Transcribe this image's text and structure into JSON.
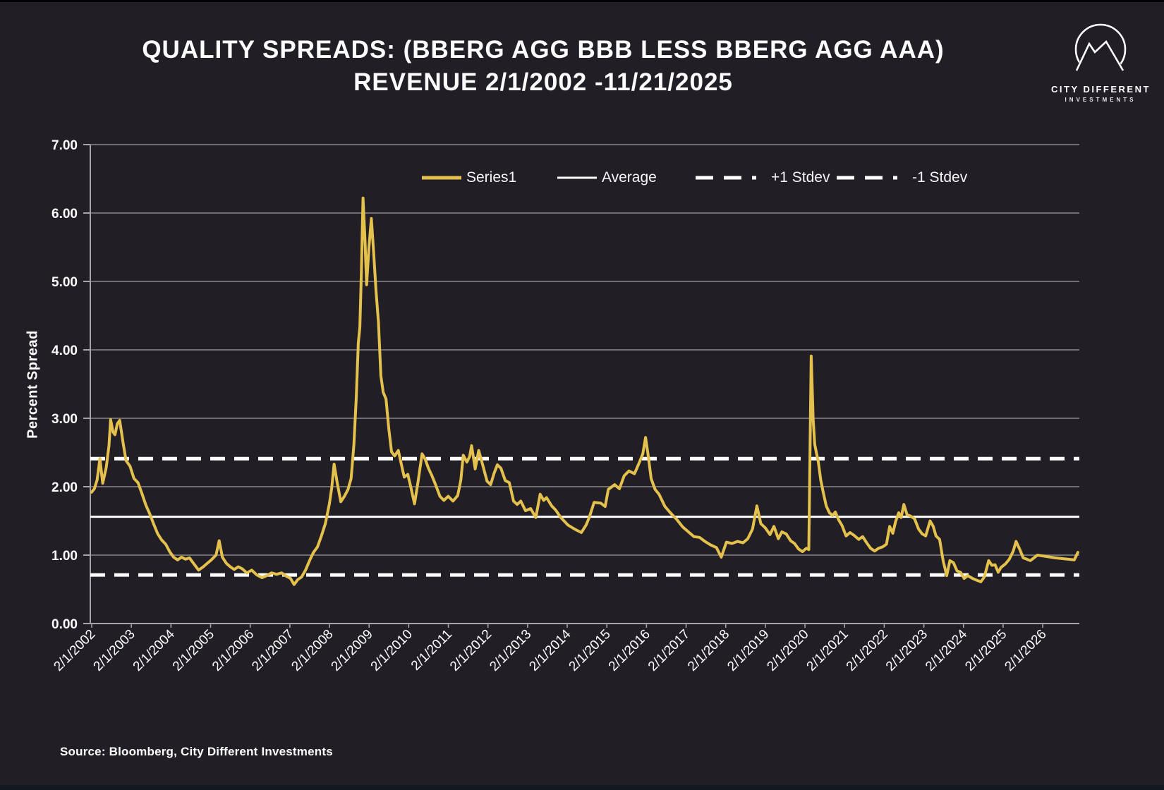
{
  "header": {
    "title_line1": "QUALITY SPREADS: (BBERG AGG BBB LESS BBERG AGG AAA)",
    "title_line2": "REVENUE 2/1/2002 -11/21/2025"
  },
  "logo": {
    "name": "CITY DIFFERENT",
    "sub": "INVESTMENTS"
  },
  "footer": {
    "source": "Source: Bloomberg, City Different Investments"
  },
  "colors": {
    "background": "#211F25",
    "series_yellow": "#E4C04C",
    "gridline": "#8A8A8A",
    "axis": "#A6A6A6",
    "reference_white": "#FFFFFF",
    "text": "#FFFFFF"
  },
  "chart_data": {
    "type": "line",
    "title": "QUALITY SPREADS: (BBERG AGG BBB LESS BBERG AGG AAA) REVENUE 2/1/2002 -11/21/2025",
    "xlabel": "",
    "ylabel": "Percent Spread",
    "ylim": [
      0,
      7
    ],
    "yticks": [
      0,
      1,
      2,
      3,
      4,
      5,
      6,
      7
    ],
    "ytick_labels": [
      "0.00",
      "1.00",
      "2.00",
      "3.00",
      "4.00",
      "5.00",
      "6.00",
      "7.00"
    ],
    "xtick_labels": [
      "2/1/2002",
      "2/1/2003",
      "2/1/2004",
      "2/1/2005",
      "2/1/2006",
      "2/1/2007",
      "2/1/2008",
      "2/1/2009",
      "2/1/2010",
      "2/1/2011",
      "2/1/2012",
      "2/1/2013",
      "2/1/2014",
      "2/1/2015",
      "2/1/2016",
      "2/1/2017",
      "2/1/2018",
      "2/1/2019",
      "2/1/2020",
      "2/1/2021",
      "2/1/2022",
      "2/1/2023",
      "2/1/2024",
      "2/1/2025",
      "2/1/2026"
    ],
    "grid": "horizontal",
    "legend_position": "top-inside",
    "legend": [
      {
        "label": "Series1",
        "style": "solid",
        "color": "#E4C04C"
      },
      {
        "label": "Average",
        "style": "solid",
        "color": "#FFFFFF"
      },
      {
        "label": "+1 Stdev",
        "style": "dashed",
        "color": "#FFFFFF"
      },
      {
        "label": "-1 Stdev",
        "style": "dashed",
        "color": "#FFFFFF"
      }
    ],
    "reference_lines": {
      "average": 1.56,
      "plus_1_stdev": 2.41,
      "minus_1_stdev": 0.71
    },
    "series": [
      {
        "name": "Series1",
        "color": "#E4C04C",
        "x_units": "decimal_year",
        "points": [
          [
            2002.08,
            1.92
          ],
          [
            2002.15,
            1.97
          ],
          [
            2002.22,
            2.1
          ],
          [
            2002.29,
            2.41
          ],
          [
            2002.36,
            2.05
          ],
          [
            2002.45,
            2.28
          ],
          [
            2002.52,
            2.6
          ],
          [
            2002.56,
            2.98
          ],
          [
            2002.62,
            2.8
          ],
          [
            2002.67,
            2.76
          ],
          [
            2002.73,
            2.92
          ],
          [
            2002.79,
            2.97
          ],
          [
            2002.88,
            2.62
          ],
          [
            2002.95,
            2.38
          ],
          [
            2003.05,
            2.3
          ],
          [
            2003.15,
            2.12
          ],
          [
            2003.25,
            2.06
          ],
          [
            2003.35,
            1.9
          ],
          [
            2003.45,
            1.73
          ],
          [
            2003.55,
            1.6
          ],
          [
            2003.65,
            1.45
          ],
          [
            2003.75,
            1.31
          ],
          [
            2003.85,
            1.22
          ],
          [
            2003.95,
            1.16
          ],
          [
            2004.05,
            1.05
          ],
          [
            2004.15,
            0.97
          ],
          [
            2004.25,
            0.93
          ],
          [
            2004.35,
            0.97
          ],
          [
            2004.45,
            0.94
          ],
          [
            2004.55,
            0.96
          ],
          [
            2004.65,
            0.88
          ],
          [
            2004.78,
            0.78
          ],
          [
            2004.9,
            0.83
          ],
          [
            2005.0,
            0.88
          ],
          [
            2005.1,
            0.93
          ],
          [
            2005.22,
            1.0
          ],
          [
            2005.3,
            1.21
          ],
          [
            2005.38,
            0.97
          ],
          [
            2005.48,
            0.88
          ],
          [
            2005.58,
            0.83
          ],
          [
            2005.68,
            0.79
          ],
          [
            2005.78,
            0.83
          ],
          [
            2005.88,
            0.8
          ],
          [
            2006.0,
            0.74
          ],
          [
            2006.12,
            0.78
          ],
          [
            2006.25,
            0.71
          ],
          [
            2006.38,
            0.67
          ],
          [
            2006.5,
            0.7
          ],
          [
            2006.62,
            0.74
          ],
          [
            2006.75,
            0.72
          ],
          [
            2006.88,
            0.74
          ],
          [
            2007.0,
            0.69
          ],
          [
            2007.1,
            0.66
          ],
          [
            2007.19,
            0.57
          ],
          [
            2007.28,
            0.64
          ],
          [
            2007.38,
            0.68
          ],
          [
            2007.48,
            0.78
          ],
          [
            2007.58,
            0.92
          ],
          [
            2007.68,
            1.04
          ],
          [
            2007.78,
            1.12
          ],
          [
            2007.88,
            1.28
          ],
          [
            2007.98,
            1.46
          ],
          [
            2008.08,
            1.75
          ],
          [
            2008.14,
            1.98
          ],
          [
            2008.2,
            2.33
          ],
          [
            2008.28,
            2.05
          ],
          [
            2008.37,
            1.78
          ],
          [
            2008.46,
            1.86
          ],
          [
            2008.55,
            1.96
          ],
          [
            2008.63,
            2.12
          ],
          [
            2008.7,
            2.62
          ],
          [
            2008.76,
            3.3
          ],
          [
            2008.81,
            4.1
          ],
          [
            2008.85,
            4.33
          ],
          [
            2008.89,
            5.15
          ],
          [
            2008.93,
            6.22
          ],
          [
            2008.98,
            5.6
          ],
          [
            2009.02,
            4.95
          ],
          [
            2009.08,
            5.5
          ],
          [
            2009.14,
            5.92
          ],
          [
            2009.2,
            5.4
          ],
          [
            2009.26,
            4.85
          ],
          [
            2009.32,
            4.4
          ],
          [
            2009.38,
            3.62
          ],
          [
            2009.44,
            3.38
          ],
          [
            2009.51,
            3.28
          ],
          [
            2009.58,
            2.85
          ],
          [
            2009.65,
            2.51
          ],
          [
            2009.73,
            2.45
          ],
          [
            2009.82,
            2.53
          ],
          [
            2009.9,
            2.32
          ],
          [
            2009.97,
            2.14
          ],
          [
            2010.06,
            2.18
          ],
          [
            2010.15,
            1.96
          ],
          [
            2010.23,
            1.75
          ],
          [
            2010.32,
            2.08
          ],
          [
            2010.42,
            2.48
          ],
          [
            2010.5,
            2.4
          ],
          [
            2010.58,
            2.27
          ],
          [
            2010.67,
            2.16
          ],
          [
            2010.76,
            2.03
          ],
          [
            2010.87,
            1.86
          ],
          [
            2010.97,
            1.8
          ],
          [
            2011.08,
            1.86
          ],
          [
            2011.2,
            1.79
          ],
          [
            2011.32,
            1.87
          ],
          [
            2011.4,
            2.1
          ],
          [
            2011.46,
            2.46
          ],
          [
            2011.55,
            2.36
          ],
          [
            2011.62,
            2.44
          ],
          [
            2011.67,
            2.6
          ],
          [
            2011.76,
            2.26
          ],
          [
            2011.85,
            2.53
          ],
          [
            2011.95,
            2.32
          ],
          [
            2012.06,
            2.08
          ],
          [
            2012.15,
            2.03
          ],
          [
            2012.24,
            2.2
          ],
          [
            2012.32,
            2.32
          ],
          [
            2012.41,
            2.27
          ],
          [
            2012.52,
            2.09
          ],
          [
            2012.62,
            2.06
          ],
          [
            2012.73,
            1.79
          ],
          [
            2012.82,
            1.74
          ],
          [
            2012.91,
            1.79
          ],
          [
            2013.03,
            1.65
          ],
          [
            2013.16,
            1.68
          ],
          [
            2013.29,
            1.55
          ],
          [
            2013.4,
            1.89
          ],
          [
            2013.49,
            1.8
          ],
          [
            2013.56,
            1.84
          ],
          [
            2013.69,
            1.72
          ],
          [
            2013.79,
            1.66
          ],
          [
            2013.92,
            1.55
          ],
          [
            2014.1,
            1.44
          ],
          [
            2014.27,
            1.38
          ],
          [
            2014.44,
            1.33
          ],
          [
            2014.56,
            1.44
          ],
          [
            2014.64,
            1.55
          ],
          [
            2014.76,
            1.77
          ],
          [
            2014.93,
            1.76
          ],
          [
            2015.04,
            1.71
          ],
          [
            2015.12,
            1.96
          ],
          [
            2015.28,
            2.03
          ],
          [
            2015.4,
            1.97
          ],
          [
            2015.52,
            2.16
          ],
          [
            2015.64,
            2.23
          ],
          [
            2015.78,
            2.19
          ],
          [
            2015.9,
            2.35
          ],
          [
            2015.99,
            2.48
          ],
          [
            2016.06,
            2.72
          ],
          [
            2016.12,
            2.48
          ],
          [
            2016.2,
            2.12
          ],
          [
            2016.3,
            1.96
          ],
          [
            2016.4,
            1.89
          ],
          [
            2016.55,
            1.71
          ],
          [
            2016.7,
            1.61
          ],
          [
            2016.85,
            1.52
          ],
          [
            2017.0,
            1.41
          ],
          [
            2017.14,
            1.34
          ],
          [
            2017.28,
            1.27
          ],
          [
            2017.42,
            1.26
          ],
          [
            2017.56,
            1.2
          ],
          [
            2017.7,
            1.15
          ],
          [
            2017.85,
            1.11
          ],
          [
            2017.97,
            0.97
          ],
          [
            2018.1,
            1.19
          ],
          [
            2018.24,
            1.17
          ],
          [
            2018.38,
            1.2
          ],
          [
            2018.52,
            1.18
          ],
          [
            2018.64,
            1.24
          ],
          [
            2018.76,
            1.38
          ],
          [
            2018.87,
            1.72
          ],
          [
            2018.97,
            1.46
          ],
          [
            2019.08,
            1.4
          ],
          [
            2019.2,
            1.3
          ],
          [
            2019.3,
            1.42
          ],
          [
            2019.41,
            1.24
          ],
          [
            2019.5,
            1.34
          ],
          [
            2019.61,
            1.31
          ],
          [
            2019.72,
            1.21
          ],
          [
            2019.82,
            1.17
          ],
          [
            2019.92,
            1.09
          ],
          [
            2020.02,
            1.05
          ],
          [
            2020.12,
            1.1
          ],
          [
            2020.18,
            1.08
          ],
          [
            2020.24,
            3.91
          ],
          [
            2020.29,
            2.98
          ],
          [
            2020.33,
            2.62
          ],
          [
            2020.37,
            2.5
          ],
          [
            2020.42,
            2.36
          ],
          [
            2020.48,
            2.1
          ],
          [
            2020.55,
            1.9
          ],
          [
            2020.62,
            1.72
          ],
          [
            2020.7,
            1.62
          ],
          [
            2020.78,
            1.58
          ],
          [
            2020.85,
            1.63
          ],
          [
            2020.93,
            1.52
          ],
          [
            2021.02,
            1.43
          ],
          [
            2021.12,
            1.28
          ],
          [
            2021.22,
            1.33
          ],
          [
            2021.32,
            1.29
          ],
          [
            2021.44,
            1.23
          ],
          [
            2021.54,
            1.27
          ],
          [
            2021.64,
            1.18
          ],
          [
            2021.74,
            1.1
          ],
          [
            2021.84,
            1.06
          ],
          [
            2021.94,
            1.1
          ],
          [
            2022.04,
            1.12
          ],
          [
            2022.14,
            1.16
          ],
          [
            2022.22,
            1.42
          ],
          [
            2022.3,
            1.32
          ],
          [
            2022.37,
            1.49
          ],
          [
            2022.45,
            1.62
          ],
          [
            2022.51,
            1.55
          ],
          [
            2022.58,
            1.74
          ],
          [
            2022.66,
            1.59
          ],
          [
            2022.75,
            1.57
          ],
          [
            2022.85,
            1.53
          ],
          [
            2022.95,
            1.38
          ],
          [
            2023.04,
            1.31
          ],
          [
            2023.13,
            1.28
          ],
          [
            2023.24,
            1.5
          ],
          [
            2023.32,
            1.42
          ],
          [
            2023.39,
            1.28
          ],
          [
            2023.48,
            1.23
          ],
          [
            2023.57,
            0.92
          ],
          [
            2023.66,
            0.7
          ],
          [
            2023.74,
            0.92
          ],
          [
            2023.83,
            0.89
          ],
          [
            2023.92,
            0.77
          ],
          [
            2024.01,
            0.75
          ],
          [
            2024.1,
            0.66
          ],
          [
            2024.19,
            0.7
          ],
          [
            2024.31,
            0.66
          ],
          [
            2024.43,
            0.63
          ],
          [
            2024.52,
            0.61
          ],
          [
            2024.61,
            0.68
          ],
          [
            2024.72,
            0.92
          ],
          [
            2024.8,
            0.85
          ],
          [
            2024.88,
            0.86
          ],
          [
            2024.96,
            0.75
          ],
          [
            2025.03,
            0.82
          ],
          [
            2025.14,
            0.87
          ],
          [
            2025.24,
            0.94
          ],
          [
            2025.34,
            1.06
          ],
          [
            2025.41,
            1.2
          ],
          [
            2025.5,
            1.09
          ],
          [
            2025.59,
            0.96
          ],
          [
            2025.68,
            0.94
          ],
          [
            2025.77,
            0.92
          ],
          [
            2025.86,
            0.96
          ],
          [
            2025.95,
            1.0
          ],
          [
            2026.4,
            0.96
          ],
          [
            2026.88,
            0.93
          ],
          [
            2026.97,
            1.04
          ]
        ]
      }
    ]
  }
}
